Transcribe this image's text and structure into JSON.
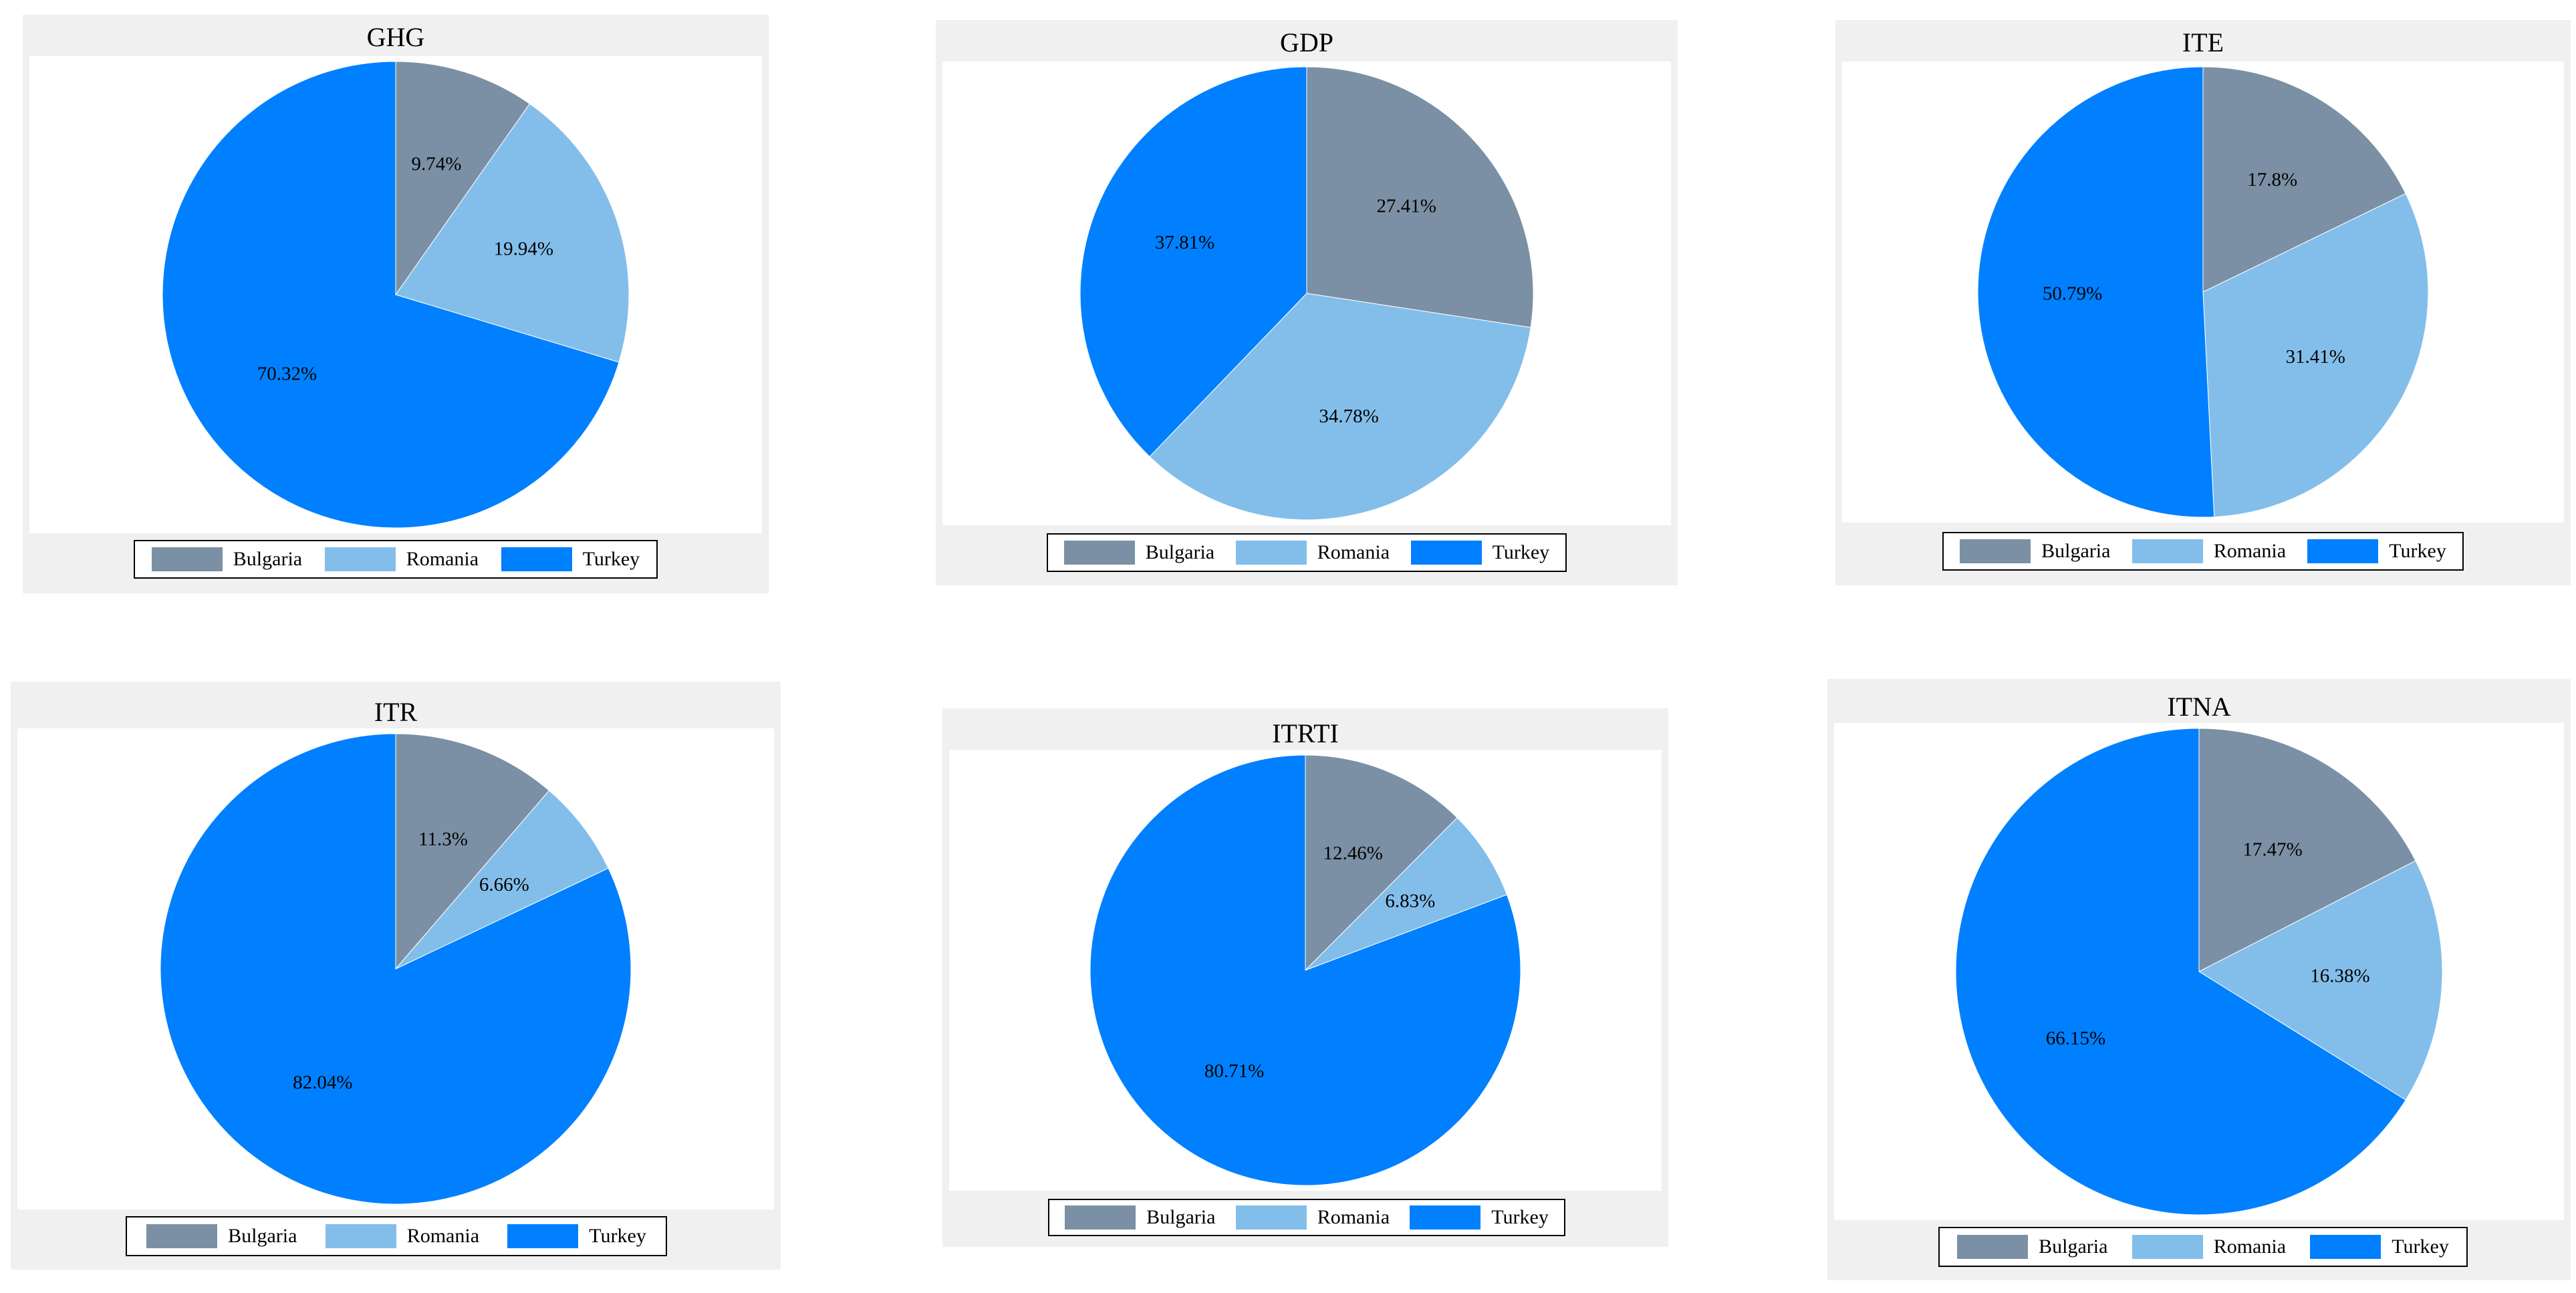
{
  "colors": {
    "bulgaria": "#7b90a5",
    "romania": "#83beea",
    "turkey": "#0080ff",
    "panel_bg": "#f0f0f0"
  },
  "legend": [
    {
      "label": "Bulgaria",
      "color": "#7b90a5"
    },
    {
      "label": "Romania",
      "color": "#83beea"
    },
    {
      "label": "Turkey",
      "color": "#0080ff"
    }
  ],
  "chart_data": [
    {
      "type": "pie",
      "title": "GHG",
      "categories": [
        "Bulgaria",
        "Romania",
        "Turkey"
      ],
      "values": [
        9.74,
        19.94,
        70.32
      ],
      "labels": [
        "9.74%",
        "19.94%",
        "70.32%"
      ]
    },
    {
      "type": "pie",
      "title": "GDP",
      "categories": [
        "Bulgaria",
        "Romania",
        "Turkey"
      ],
      "values": [
        27.41,
        34.78,
        37.81
      ],
      "labels": [
        "27.41%",
        "34.78%",
        "37.81%"
      ]
    },
    {
      "type": "pie",
      "title": "ITE",
      "categories": [
        "Bulgaria",
        "Romania",
        "Turkey"
      ],
      "values": [
        17.8,
        31.41,
        50.79
      ],
      "labels": [
        "17.8%",
        "31.41%",
        "50.79%"
      ]
    },
    {
      "type": "pie",
      "title": "ITR",
      "categories": [
        "Bulgaria",
        "Romania",
        "Turkey"
      ],
      "values": [
        11.3,
        6.66,
        82.04
      ],
      "labels": [
        "11.3%",
        "6.66%",
        "82.04%"
      ]
    },
    {
      "type": "pie",
      "title": "ITRTI",
      "categories": [
        "Bulgaria",
        "Romania",
        "Turkey"
      ],
      "values": [
        12.46,
        6.83,
        80.71
      ],
      "labels": [
        "12.46%",
        "6.83%",
        "80.71%"
      ]
    },
    {
      "type": "pie",
      "title": "ITNA",
      "categories": [
        "Bulgaria",
        "Romania",
        "Turkey"
      ],
      "values": [
        17.47,
        16.38,
        66.15
      ],
      "labels": [
        "17.47%",
        "16.38%",
        "66.15%"
      ]
    }
  ]
}
